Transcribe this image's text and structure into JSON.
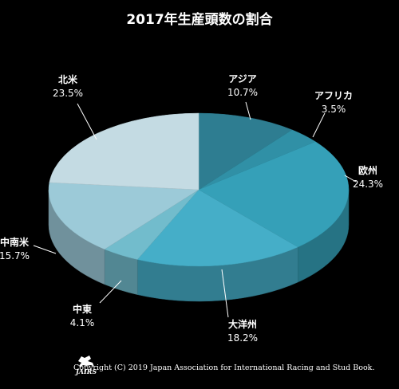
{
  "chart_data": {
    "type": "pie",
    "title": "2017年生産頭数の割合",
    "slices": [
      {
        "label": "アジア",
        "value": 10.7,
        "value_label": "10.7%",
        "color": "#2e7d91"
      },
      {
        "label": "アフリカ",
        "value": 3.5,
        "value_label": "3.5%",
        "color": "#3090a6"
      },
      {
        "label": "欧州",
        "value": 24.3,
        "value_label": "24.3%",
        "color": "#35a0b8"
      },
      {
        "label": "大洋州",
        "value": 18.2,
        "value_label": "18.2%",
        "color": "#45aec8"
      },
      {
        "label": "中東",
        "value": 4.1,
        "value_label": "4.1%",
        "color": "#72bccc"
      },
      {
        "label": "中南米",
        "value": 15.7,
        "value_label": "15.7%",
        "color": "#9ccad8"
      },
      {
        "label": "北米",
        "value": 23.5,
        "value_label": "23.5%",
        "color": "#c4dbe3"
      }
    ],
    "style": "3d-tilted"
  },
  "footer": {
    "logo_text": "JAIRS",
    "copyright": "Copyright (C) 2019 Japan Association for International Racing and Stud Book."
  }
}
